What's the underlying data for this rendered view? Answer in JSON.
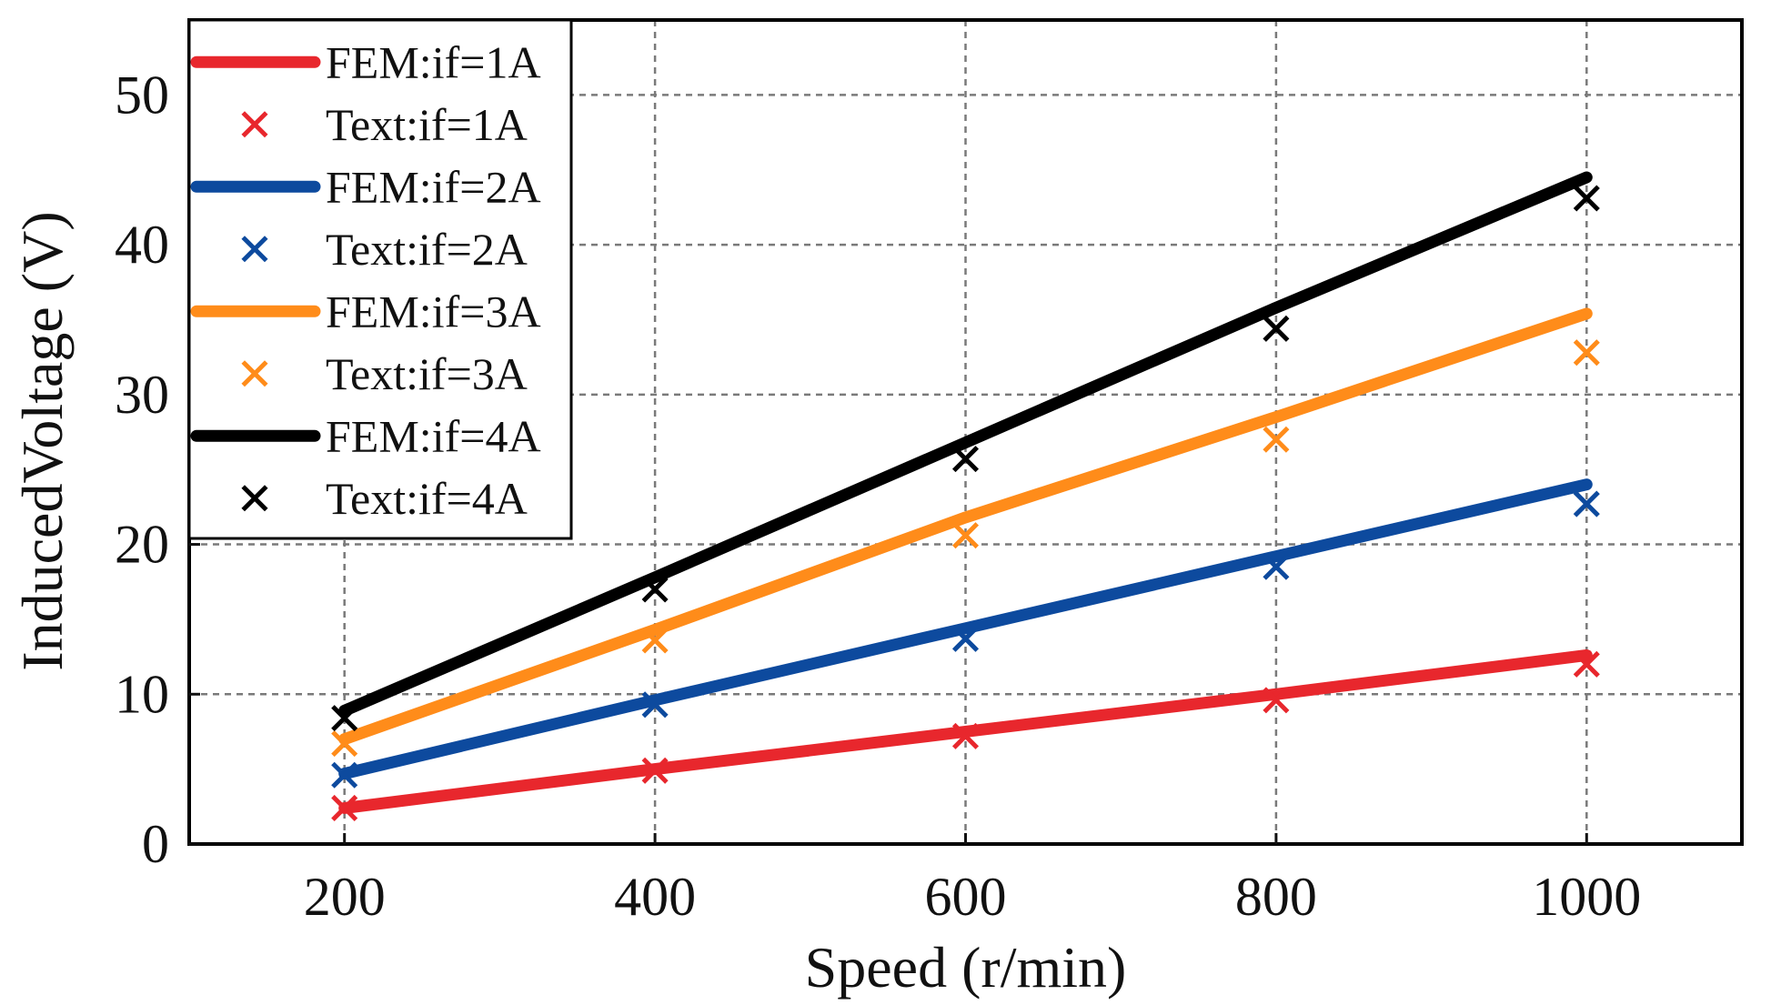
{
  "chart_data": {
    "type": "line",
    "title": "",
    "xlabel": "Speed (r/min)",
    "ylabel": "InducedVoltage (V)",
    "xlim": [
      100,
      1100
    ],
    "ylim": [
      0,
      55
    ],
    "xticks": [
      200,
      400,
      600,
      800,
      1000
    ],
    "yticks": [
      0,
      10,
      20,
      30,
      40,
      50
    ],
    "grid": true,
    "legend_position": "top-left",
    "x": [
      200,
      400,
      600,
      800,
      1000
    ],
    "series": [
      {
        "name": "FEM:if=1A",
        "kind": "line",
        "color": "#e8272d",
        "values": [
          2.4,
          5.0,
          7.5,
          10.0,
          12.6
        ]
      },
      {
        "name": "Text:if=1A",
        "kind": "marker",
        "color": "#e8272d",
        "values": [
          2.4,
          4.9,
          7.2,
          9.6,
          12.0
        ]
      },
      {
        "name": "FEM:if=2A",
        "kind": "line",
        "color": "#0d4a9e",
        "values": [
          4.7,
          9.6,
          14.4,
          19.2,
          24.0
        ]
      },
      {
        "name": "Text:if=2A",
        "kind": "marker",
        "color": "#0d4a9e",
        "values": [
          4.6,
          9.3,
          13.7,
          18.5,
          22.7
        ]
      },
      {
        "name": "FEM:if=3A",
        "kind": "line",
        "color": "#ff8c1a",
        "values": [
          7.0,
          14.3,
          21.8,
          28.5,
          35.4
        ]
      },
      {
        "name": "Text:if=3A",
        "kind": "marker",
        "color": "#ff8c1a",
        "values": [
          6.7,
          13.6,
          20.6,
          27.0,
          32.8
        ]
      },
      {
        "name": "FEM:if=4A",
        "kind": "line",
        "color": "#000000",
        "values": [
          8.9,
          17.8,
          26.8,
          35.8,
          44.5
        ]
      },
      {
        "name": "Text:if=4A",
        "kind": "marker",
        "color": "#000000",
        "values": [
          8.4,
          17.0,
          25.7,
          34.4,
          43.1
        ]
      }
    ]
  }
}
